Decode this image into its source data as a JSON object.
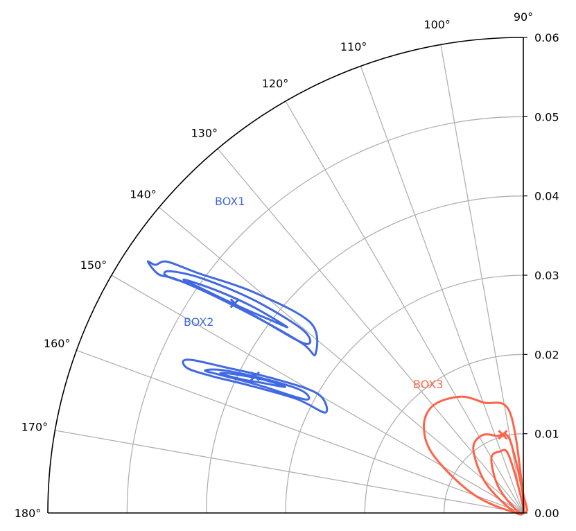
{
  "chart_data": {
    "type": "polar-contour",
    "theta_range_deg": [
      90,
      180
    ],
    "r_range": [
      0,
      0.06
    ],
    "angle_ticks": [
      "90°",
      "100°",
      "110°",
      "120°",
      "130°",
      "140°",
      "150°",
      "160°",
      "170°",
      "180°"
    ],
    "angle_tick_values": [
      90,
      100,
      110,
      120,
      130,
      140,
      150,
      160,
      170,
      180
    ],
    "radial_ticks": [
      "0.00",
      "0.01",
      "0.02",
      "0.03",
      "0.04",
      "0.05",
      "0.06"
    ],
    "radial_tick_values": [
      0,
      0.01,
      0.02,
      0.03,
      0.04,
      0.05,
      0.06
    ],
    "grid": true,
    "series": [
      {
        "name": "BOX1",
        "color": "#4169e1",
        "center": {
          "theta_deg": 144,
          "r": 0.045
        },
        "contours": [
          [
            [
              142.7,
              0.033
            ],
            [
              138.2,
              0.036
            ],
            [
              140.7,
              0.044
            ],
            [
              143.6,
              0.051
            ],
            [
              144.8,
              0.055
            ],
            [
              146.0,
              0.056
            ],
            [
              146.2,
              0.057
            ],
            [
              146.8,
              0.055
            ],
            [
              146.1,
              0.053
            ],
            [
              145.0,
              0.048
            ],
            [
              143.4,
              0.04
            ],
            [
              142.5,
              0.035
            ],
            [
              142.7,
              0.033
            ]
          ],
          [
            [
              142.3,
              0.035
            ],
            [
              140.3,
              0.036
            ],
            [
              141.6,
              0.043
            ],
            [
              143.8,
              0.05
            ],
            [
              145.6,
              0.054
            ],
            [
              146.4,
              0.054
            ],
            [
              145.3,
              0.05
            ],
            [
              143.9,
              0.043
            ],
            [
              142.3,
              0.035
            ]
          ],
          [
            [
              141.8,
              0.038
            ],
            [
              142.7,
              0.043
            ],
            [
              144.1,
              0.048
            ],
            [
              145.5,
              0.052
            ],
            [
              145.0,
              0.049
            ],
            [
              143.9,
              0.044
            ],
            [
              142.6,
              0.04
            ],
            [
              141.8,
              0.038
            ]
          ]
        ]
      },
      {
        "name": "BOX2",
        "color": "#4169e1",
        "center": {
          "theta_deg": 153,
          "r": 0.038
        },
        "contours": [
          [
            [
              153.1,
              0.028
            ],
            [
              149.9,
              0.03
            ],
            [
              151.8,
              0.036
            ],
            [
              154.0,
              0.042
            ],
            [
              155.2,
              0.046
            ],
            [
              156.0,
              0.047
            ],
            [
              156.7,
              0.046
            ],
            [
              156.3,
              0.043
            ],
            [
              155.0,
              0.038
            ],
            [
              153.3,
              0.032
            ],
            [
              153.1,
              0.028
            ]
          ],
          [
            [
              152.5,
              0.031
            ],
            [
              151.1,
              0.032
            ],
            [
              152.7,
              0.037
            ],
            [
              154.6,
              0.042
            ],
            [
              155.9,
              0.044
            ],
            [
              155.5,
              0.042
            ],
            [
              154.2,
              0.037
            ],
            [
              152.5,
              0.031
            ]
          ],
          [
            [
              152.1,
              0.034
            ],
            [
              152.9,
              0.037
            ],
            [
              154.6,
              0.041
            ],
            [
              155.3,
              0.042
            ],
            [
              154.5,
              0.039
            ],
            [
              153.6,
              0.037
            ],
            [
              152.1,
              0.034
            ]
          ]
        ]
      },
      {
        "name": "BOX3",
        "color": "#ff6347",
        "center": {
          "theta_deg": 104.7,
          "r": 0.0102
        },
        "contours": [
          [
            [
              90,
              0
            ],
            [
              92.0,
              0.003
            ],
            [
              97.7,
              0.0129
            ],
            [
              109.7,
              0.0148
            ],
            [
              118.5,
              0.0167
            ],
            [
              130.0,
              0.0177
            ],
            [
              139.1,
              0.0166
            ],
            [
              147.6,
              0.0133
            ],
            [
              160.4,
              0.0063
            ],
            [
              180,
              0
            ]
          ],
          [
            [
              90,
              0
            ],
            [
              100.2,
              0.0092
            ],
            [
              109.3,
              0.0103
            ],
            [
              118.3,
              0.0111
            ],
            [
              128.6,
              0.0101
            ],
            [
              143.2,
              0.0055
            ],
            [
              180,
              0
            ]
          ],
          [
            [
              90,
              0
            ],
            [
              104.0,
              0.0074
            ],
            [
              111.2,
              0.0083
            ],
            [
              120.8,
              0.0079
            ],
            [
              135.0,
              0.0042
            ],
            [
              180,
              0
            ]
          ]
        ]
      }
    ]
  }
}
